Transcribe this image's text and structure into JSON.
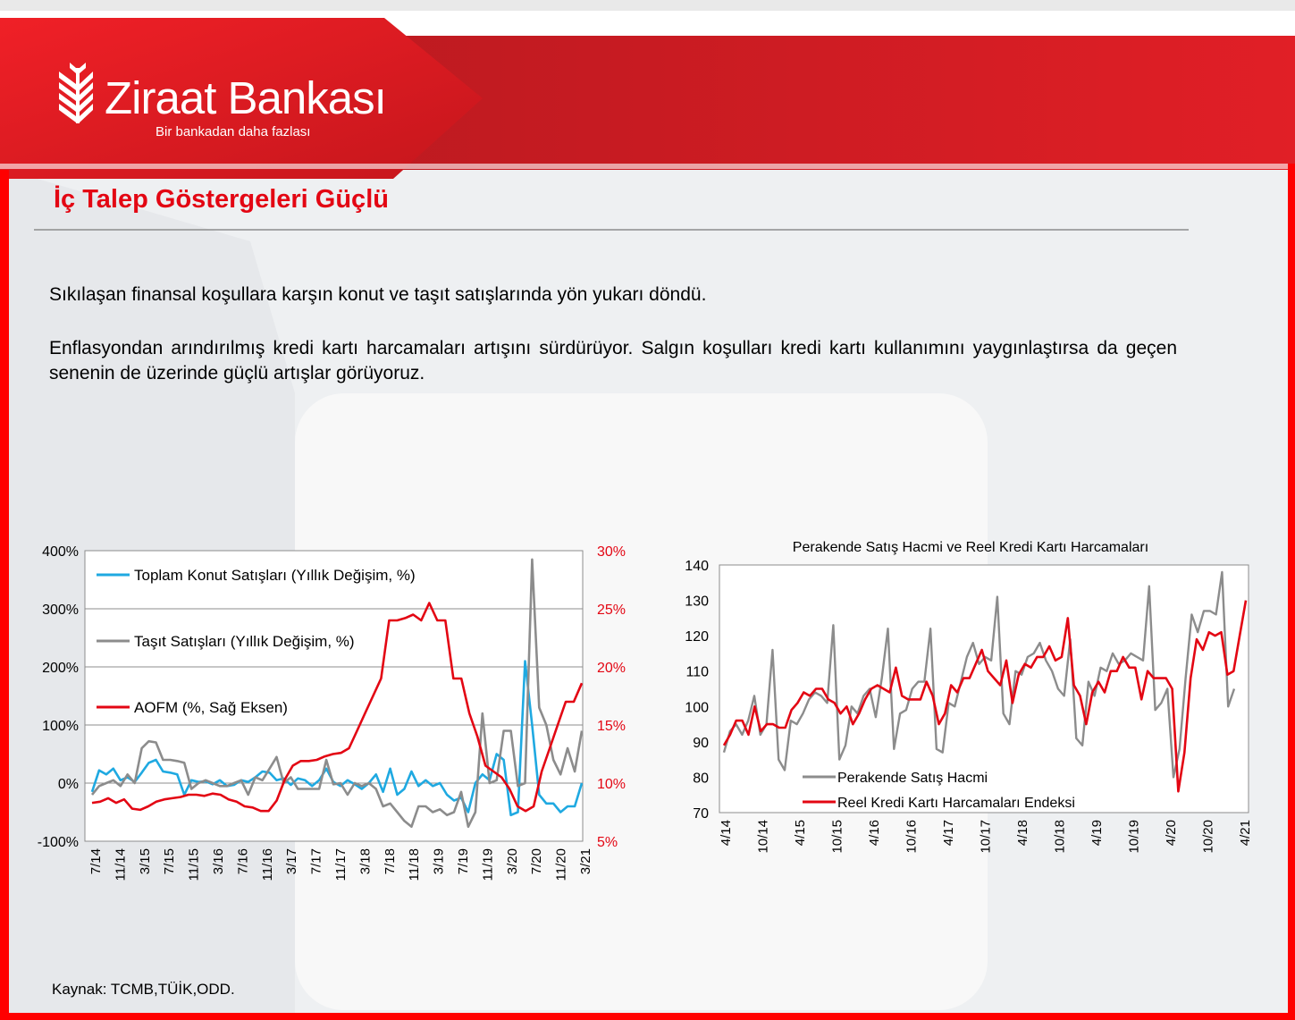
{
  "header": {
    "brand": "Ziraat Bankası",
    "slogan": "Bir bankadan daha fazlası",
    "colors": {
      "red": "#e30613",
      "dark_red": "#b21a1f"
    },
    "logo": "wheat-icon"
  },
  "title": "İç Talep Göstergeleri Güçlü",
  "paragraphs": [
    "Sıkılaşan finansal koşullara karşın konut ve taşıt satışlarında yön yukarı döndü.",
    "Enflasyondan arındırılmış kredi kartı harcamaları artışını sürdürüyor. Salgın koşulları kredi kartı kullanımını yaygınlaştırsa da geçen senenin de üzerinde güçlü artışlar görüyoruz."
  ],
  "source": "Kaynak: TCMB,TÜİK,ODD.",
  "chart_data": [
    {
      "type": "line",
      "title": "",
      "x_ticks": [
        "7/14",
        "11/14",
        "3/15",
        "7/15",
        "11/15",
        "3/16",
        "7/16",
        "11/16",
        "3/17",
        "7/17",
        "11/17",
        "3/18",
        "7/18",
        "11/18",
        "3/19",
        "7/19",
        "11/19",
        "3/20",
        "7/20",
        "11/20",
        "3/21"
      ],
      "y_left": {
        "range": [
          -100,
          400
        ],
        "ticks": [
          "-100%",
          "0%",
          "100%",
          "200%",
          "300%",
          "400%"
        ]
      },
      "y_right": {
        "range": [
          5,
          30
        ],
        "ticks": [
          "5%",
          "10%",
          "15%",
          "20%",
          "25%",
          "30%"
        ],
        "color": "#e30613"
      },
      "legend_position": "top-left",
      "grid": true,
      "series": [
        {
          "name": "Toplam Konut Satışları (Yıllık Değişim, %)",
          "axis": "left",
          "color": "#1fa9e1",
          "values": [
            -15,
            22,
            15,
            25,
            5,
            10,
            2,
            18,
            35,
            40,
            20,
            18,
            15,
            -20,
            5,
            2,
            3,
            -2,
            5,
            -5,
            -3,
            5,
            2,
            10,
            20,
            18,
            5,
            8,
            -3,
            8,
            5,
            -5,
            5,
            25,
            2,
            -5,
            5,
            -2,
            -10,
            0,
            15,
            -15,
            25,
            -20,
            -10,
            20,
            -5,
            5,
            -5,
            0,
            -20,
            -30,
            -25,
            -50,
            0,
            15,
            5,
            50,
            40,
            -55,
            -50,
            210,
            100,
            -20,
            -35,
            -35,
            -50,
            -40,
            -40,
            0
          ]
        },
        {
          "name": "Taşıt Satışları (Yıllık Değişim, %)",
          "axis": "left",
          "color": "#8c8c8c",
          "values": [
            -20,
            -5,
            0,
            5,
            -5,
            15,
            0,
            60,
            72,
            70,
            40,
            40,
            38,
            35,
            -10,
            0,
            5,
            0,
            -5,
            -5,
            0,
            5,
            -20,
            10,
            5,
            25,
            45,
            0,
            10,
            -10,
            -10,
            -10,
            -10,
            40,
            -2,
            0,
            -20,
            0,
            -5,
            0,
            -10,
            -40,
            -35,
            -50,
            -65,
            -75,
            -40,
            -40,
            -50,
            -45,
            -55,
            -50,
            -15,
            -75,
            -50,
            120,
            0,
            5,
            90,
            90,
            -5,
            0,
            385,
            130,
            100,
            40,
            15,
            60,
            20,
            90
          ]
        },
        {
          "name": "AOFM (%, Sağ Eksen)",
          "axis": "right",
          "color": "#e30613",
          "values": [
            8.3,
            8.4,
            8.7,
            8.3,
            8.6,
            7.8,
            7.7,
            8.0,
            8.4,
            8.6,
            8.7,
            8.8,
            9.0,
            9.0,
            8.9,
            9.1,
            9.0,
            8.6,
            8.4,
            8.0,
            7.9,
            7.6,
            7.6,
            8.5,
            10.3,
            11.5,
            11.9,
            11.9,
            12.0,
            12.3,
            12.5,
            12.6,
            13.0,
            14.5,
            16.0,
            17.5,
            19.0,
            24.0,
            24.0,
            24.2,
            24.5,
            24.0,
            25.5,
            24.0,
            24.0,
            19.0,
            19.0,
            16.0,
            14.0,
            11.5,
            11.0,
            10.5,
            9.5,
            8.0,
            7.6,
            8.0,
            11.0,
            13.0,
            15.0,
            17.0,
            17.0,
            18.6
          ]
        }
      ]
    },
    {
      "type": "line",
      "title": "Perakende Satış Hacmi ve Reel Kredi Kartı Harcamaları",
      "x_ticks": [
        "4/14",
        "10/14",
        "4/15",
        "10/15",
        "4/16",
        "10/16",
        "4/17",
        "10/17",
        "4/18",
        "10/18",
        "4/19",
        "10/19",
        "4/20",
        "10/20",
        "4/21"
      ],
      "y": {
        "range": [
          70,
          140
        ],
        "ticks": [
          "70",
          "80",
          "90",
          "100",
          "110",
          "120",
          "130",
          "140"
        ]
      },
      "legend_position": "bottom-center",
      "grid": false,
      "series": [
        {
          "name": "Perakende Satış Hacmi",
          "color": "#8c8c8c",
          "values": [
            87,
            93,
            95,
            92,
            96,
            103,
            92,
            95,
            116,
            85,
            82,
            96,
            95,
            98,
            102,
            104,
            103,
            101,
            123,
            85,
            89,
            100,
            98,
            103,
            105,
            97,
            108,
            122,
            88,
            98,
            99,
            105,
            107,
            107,
            122,
            88,
            87,
            101,
            100,
            107,
            114,
            118,
            112,
            114,
            113,
            131,
            98,
            95,
            110,
            109,
            114,
            115,
            118,
            113,
            110,
            105,
            103,
            119,
            91,
            89,
            107,
            103,
            111,
            110,
            115,
            112,
            113,
            115,
            114,
            113,
            134,
            99,
            101,
            105,
            80,
            88,
            108,
            126,
            121,
            127,
            127,
            126,
            138,
            100,
            105
          ]
        },
        {
          "name": "Reel Kredi Kartı Harcamaları Endeksi",
          "color": "#e30613",
          "values": [
            89,
            92,
            96,
            96,
            92,
            100,
            93,
            95,
            95,
            94,
            94,
            99,
            101,
            104,
            103,
            105,
            105,
            102,
            101,
            98,
            100,
            95,
            98,
            102,
            105,
            106,
            105,
            104,
            111,
            103,
            102,
            102,
            102,
            107,
            103,
            95,
            98,
            106,
            104,
            108,
            108,
            112,
            116,
            110,
            108,
            106,
            113,
            101,
            109,
            112,
            111,
            114,
            114,
            117,
            113,
            114,
            125,
            106,
            103,
            95,
            104,
            107,
            104,
            110,
            110,
            114,
            111,
            111,
            102,
            110,
            108,
            108,
            108,
            105,
            76,
            87,
            108,
            119,
            116,
            121,
            120,
            121,
            109,
            110,
            120,
            130
          ]
        }
      ]
    }
  ]
}
